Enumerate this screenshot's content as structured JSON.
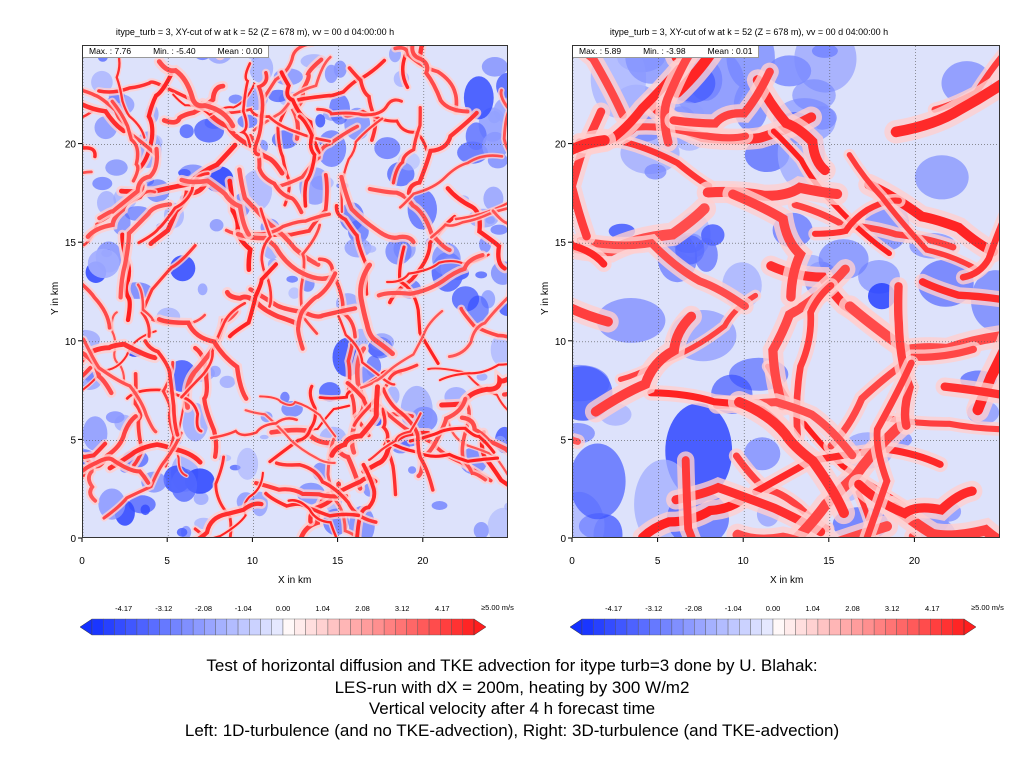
{
  "colors": {
    "negative": "#1230d8",
    "neutral": "#ffffff",
    "positive": "#e01818"
  },
  "chart_data": [
    {
      "type": "heatmap",
      "title": "itype_turb = 3, XY-cut of w at k = 52 (Z = 678 m), vv = 00 d 04:00:00 h",
      "stats": {
        "max": "Max. : 7.76",
        "min": "Min. : -5.40",
        "mean": "Mean : 0.00"
      },
      "xlabel": "X in km",
      "ylabel": "Y in km",
      "xlim": [
        0,
        25
      ],
      "ylim": [
        0,
        25
      ],
      "xticks": [
        "0",
        "5",
        "10",
        "15",
        "20"
      ],
      "yticks": [
        "0",
        "5",
        "10",
        "15",
        "20"
      ],
      "colorbar_ticks": [
        "-4.17",
        "-3.12",
        "-2.08",
        "-1.04",
        "0.00",
        "1.04",
        "2.08",
        "3.12",
        "4.17"
      ],
      "colorbar_unit": "≥5.00 m/s",
      "colorbar_range": [
        -5.0,
        5.0
      ],
      "pattern": "fine-scale"
    },
    {
      "type": "heatmap",
      "title": "itype_turb = 3, XY-cut of w at k = 52 (Z = 678 m), vv = 00 d 04:00:00 h",
      "stats": {
        "max": "Max. : 5.89",
        "min": "Min. : -3.98",
        "mean": "Mean : 0.01"
      },
      "xlabel": "X in km",
      "ylabel": "Y in km",
      "xlim": [
        0,
        25
      ],
      "ylim": [
        0,
        25
      ],
      "xticks": [
        "0",
        "5",
        "10",
        "15",
        "20"
      ],
      "yticks": [
        "0",
        "5",
        "10",
        "15",
        "20"
      ],
      "colorbar_ticks": [
        "-4.17",
        "-3.12",
        "-2.08",
        "-1.04",
        "0.00",
        "1.04",
        "2.08",
        "3.12",
        "4.17"
      ],
      "colorbar_unit": "≥5.00 m/s",
      "colorbar_range": [
        -5.0,
        5.0
      ],
      "pattern": "cellular"
    }
  ],
  "caption": {
    "line1": "Test of horizontal diffusion and TKE advection  for  itype turb=3   done by U. Blahak:",
    "line2": "LES-run with dX = 200m, heating by 300 W/m2",
    "line3": "Vertical velocity after 4 h forecast time",
    "line4": "Left: 1D-turbulence (and no TKE-advection), Right: 3D-turbulence (and TKE-advection)"
  }
}
